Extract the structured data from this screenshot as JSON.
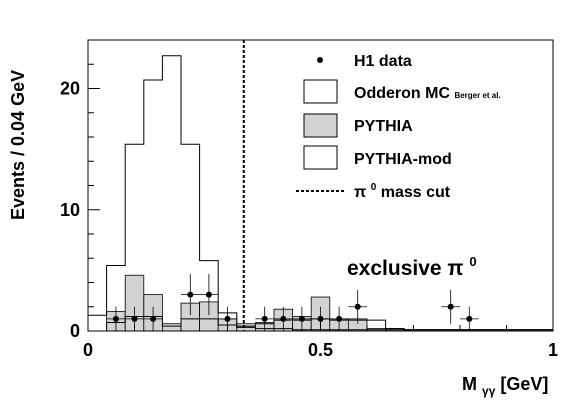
{
  "chart_data": {
    "type": "bar",
    "xlabel_main": "M",
    "xlabel_sub": "γγ",
    "xlabel_unit": " [GeV]",
    "ylabel": "Events / 0.04 GeV",
    "xlim": [
      0,
      1
    ],
    "ylim": [
      0,
      24
    ],
    "xticks": [
      {
        "value": 0,
        "label": "0"
      },
      {
        "value": 0.5,
        "label": "0.5"
      },
      {
        "value": 1,
        "label": "1"
      }
    ],
    "yticks": [
      {
        "value": 0,
        "label": "0"
      },
      {
        "value": 10,
        "label": "10"
      },
      {
        "value": 20,
        "label": "20"
      }
    ],
    "bin_edges": [
      0.0,
      0.04,
      0.08,
      0.12,
      0.16,
      0.2,
      0.24,
      0.28,
      0.32,
      0.36,
      0.4,
      0.44,
      0.48,
      0.52,
      0.56,
      0.6,
      0.64,
      0.68,
      0.72,
      0.76,
      0.8,
      0.84,
      0.88,
      0.92,
      0.96,
      1.0
    ],
    "series": [
      {
        "name": "Odderon MC",
        "name_suffix": "Berger et al.",
        "style": "open-hist",
        "values": [
          1.3,
          5.4,
          15.4,
          20.7,
          22.7,
          15.4,
          5.8,
          1.5,
          0.3,
          0.2,
          0.2,
          0.1,
          0.1,
          0.1,
          0.1,
          0.1,
          0.1,
          0.1,
          0.1,
          0.1,
          0.1,
          0.1,
          0.1,
          0.1,
          0.1
        ]
      },
      {
        "name": "PYTHIA",
        "style": "filled-hist",
        "color": "#d3d3d3",
        "values": [
          0,
          1.6,
          4.6,
          3.0,
          0.6,
          2.3,
          2.4,
          1.0,
          0.6,
          0.7,
          1.8,
          1.2,
          2.8,
          1.0,
          1.0,
          0.2,
          0.2,
          0.1,
          0.1,
          0.1,
          0.1,
          0.1,
          0.1,
          0.1,
          0.1
        ]
      },
      {
        "name": "PYTHIA-mod",
        "style": "open-hist",
        "values": [
          0,
          0.7,
          1.2,
          1.2,
          0.4,
          1.0,
          1.0,
          0.5,
          0.4,
          0.6,
          0.9,
          0.9,
          1.0,
          0.9,
          0.9,
          0.9,
          0.2,
          0.1,
          0.1,
          0.1,
          0.1,
          0.1,
          0.1,
          0.1,
          0.1
        ]
      },
      {
        "name": "H1 data",
        "style": "points",
        "points": [
          {
            "x": 0.06,
            "y": 1,
            "ey": 1
          },
          {
            "x": 0.1,
            "y": 1,
            "ey": 1
          },
          {
            "x": 0.14,
            "y": 1,
            "ey": 1
          },
          {
            "x": 0.22,
            "y": 3,
            "ey": 1.7
          },
          {
            "x": 0.26,
            "y": 3,
            "ey": 1.7
          },
          {
            "x": 0.3,
            "y": 1,
            "ey": 1
          },
          {
            "x": 0.38,
            "y": 1,
            "ey": 1
          },
          {
            "x": 0.42,
            "y": 1,
            "ey": 1
          },
          {
            "x": 0.46,
            "y": 1,
            "ey": 1
          },
          {
            "x": 0.5,
            "y": 1,
            "ey": 1
          },
          {
            "x": 0.54,
            "y": 1,
            "ey": 1
          },
          {
            "x": 0.58,
            "y": 2,
            "ey": 1.4
          },
          {
            "x": 0.78,
            "y": 2,
            "ey": 1.4
          },
          {
            "x": 0.82,
            "y": 1,
            "ey": 1
          }
        ]
      }
    ],
    "mass_cut": {
      "x": 0.335,
      "label": "mass cut"
    },
    "legend": {
      "placement": "top-right",
      "entries": [
        {
          "label": "H1 data",
          "marker": "dot"
        },
        {
          "label": "Odderon MC",
          "suffix": "Berger et al.",
          "marker": "open-box"
        },
        {
          "label": "PYTHIA",
          "marker": "filled-box"
        },
        {
          "label": "PYTHIA-mod",
          "marker": "open-box"
        },
        {
          "label": "mass cut",
          "marker": "dashed-line"
        }
      ]
    },
    "annotation": "exclusive π",
    "annotation_sup": "0",
    "pi_symbol": "π",
    "pi_sup": "0"
  }
}
